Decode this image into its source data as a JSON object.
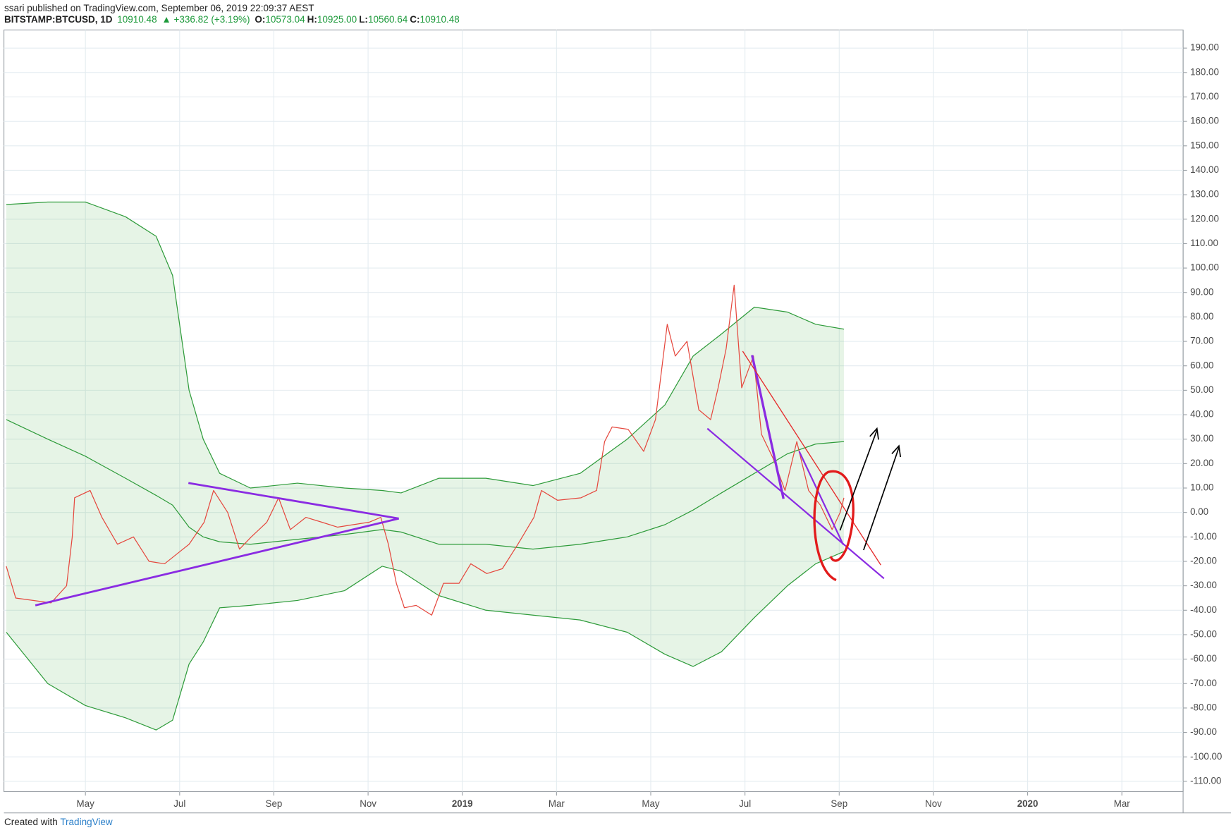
{
  "header": {
    "published": "ssari published on TradingView.com, September 06, 2019 22:09:37 AEST",
    "symbol": "BITSTAMP:BTCUSD, 1D",
    "last": "10910.48",
    "change": "▲ +336.82 (+3.19%)",
    "ohlc": [
      {
        "label": "O:",
        "value": "10573.04"
      },
      {
        "label": "H:",
        "value": "10925.00"
      },
      {
        "label": "L:",
        "value": "10560.64"
      },
      {
        "label": "C:",
        "value": "10910.48"
      }
    ]
  },
  "footer": {
    "text": "Created with",
    "brand": "TradingView"
  },
  "chart_data": {
    "type": "line",
    "xlim": [
      2.27,
      27.3
    ],
    "xticks": [
      {
        "value": 4,
        "label": "May"
      },
      {
        "value": 6,
        "label": "Jul"
      },
      {
        "value": 8,
        "label": "Sep"
      },
      {
        "value": 10,
        "label": "Nov"
      },
      {
        "value": 12,
        "label": "2019"
      },
      {
        "value": 14,
        "label": "Mar"
      },
      {
        "value": 16,
        "label": "May"
      },
      {
        "value": 18,
        "label": "Jul"
      },
      {
        "value": 20,
        "label": "Sep"
      },
      {
        "value": 22,
        "label": "Nov"
      },
      {
        "value": 24,
        "label": "2020"
      },
      {
        "value": 26,
        "label": "Mar"
      }
    ],
    "ylim": [
      -114.2,
      197.4
    ],
    "yticks": [
      {
        "value": 190,
        "label": "190.00"
      },
      {
        "value": 180,
        "label": "180.00"
      },
      {
        "value": 170,
        "label": "170.00"
      },
      {
        "value": 160,
        "label": "160.00"
      },
      {
        "value": 150,
        "label": "150.00"
      },
      {
        "value": 140,
        "label": "140.00"
      },
      {
        "value": 130,
        "label": "130.00"
      },
      {
        "value": 120,
        "label": "120.00"
      },
      {
        "value": 110,
        "label": "110.00"
      },
      {
        "value": 100,
        "label": "100.00"
      },
      {
        "value": 90,
        "label": "90.00"
      },
      {
        "value": 80,
        "label": "80.00"
      },
      {
        "value": 70,
        "label": "70.00"
      },
      {
        "value": 60,
        "label": "60.00"
      },
      {
        "value": 50,
        "label": "50.00"
      },
      {
        "value": 40,
        "label": "40.00"
      },
      {
        "value": 30,
        "label": "30.00"
      },
      {
        "value": 20,
        "label": "20.00"
      },
      {
        "value": 10,
        "label": "10.00"
      },
      {
        "value": 0,
        "label": "0.00"
      },
      {
        "value": -10,
        "label": "-10.00"
      },
      {
        "value": -20,
        "label": "-20.00"
      },
      {
        "value": -30,
        "label": "-30.00"
      },
      {
        "value": -40,
        "label": "-40.00"
      },
      {
        "value": -50,
        "label": "-50.00"
      },
      {
        "value": -60,
        "label": "-60.00"
      },
      {
        "value": -70,
        "label": "-70.00"
      },
      {
        "value": -80,
        "label": "-80.00"
      },
      {
        "value": -90,
        "label": "-90.00"
      },
      {
        "value": -100,
        "label": "-100.00"
      },
      {
        "value": -110,
        "label": "-110.00"
      }
    ],
    "grid": true,
    "band_fill": "rgba(76,175,80,0.14)",
    "series": [
      {
        "color": "#2e9b3a",
        "x": [
          2.32,
          3.2,
          4.0,
          4.85,
          5.5,
          5.85,
          6.2,
          6.5,
          6.85,
          7.5,
          8.5,
          9.5,
          10.3,
          10.7,
          11.5,
          12.5,
          13.5,
          14.5,
          15.5,
          16.3,
          16.9,
          17.5,
          18.2,
          18.9,
          19.5,
          20.1
        ],
        "values": [
          126,
          127,
          127,
          121,
          113,
          97,
          50,
          30,
          16,
          10,
          12,
          10,
          9,
          8,
          14,
          14,
          11,
          16,
          30,
          44,
          64,
          73,
          84,
          82,
          77,
          75
        ]
      },
      {
        "color": "#2e9b3a",
        "x": [
          2.32,
          3.2,
          4.0,
          4.85,
          5.5,
          5.85,
          6.2,
          6.5,
          6.85,
          7.5,
          8.5,
          9.5,
          10.3,
          10.7,
          11.5,
          12.5,
          13.5,
          14.5,
          15.5,
          16.3,
          16.9,
          17.5,
          18.2,
          18.9,
          19.5,
          20.1
        ],
        "values": [
          38,
          30,
          23,
          14,
          7,
          3,
          -6,
          -10,
          -12,
          -13,
          -11,
          -9,
          -7,
          -8,
          -13,
          -13,
          -15,
          -13,
          -10,
          -5,
          1,
          8,
          16,
          24,
          28,
          29
        ]
      },
      {
        "color": "#2e9b3a",
        "x": [
          2.32,
          3.2,
          4.0,
          4.85,
          5.5,
          5.85,
          6.2,
          6.5,
          6.85,
          7.5,
          8.5,
          9.5,
          10.3,
          10.7,
          11.5,
          12.5,
          13.5,
          14.5,
          15.5,
          16.3,
          16.9,
          17.5,
          18.2,
          18.9,
          19.5,
          20.1
        ],
        "values": [
          -49,
          -70,
          -79,
          -84,
          -89,
          -85,
          -62,
          -53,
          -39,
          -38,
          -36,
          -32,
          -22,
          -24,
          -34,
          -40,
          -42,
          -44,
          -49,
          -58,
          -63,
          -57,
          -43,
          -30,
          -21,
          -16
        ]
      },
      {
        "color": "#e5473d",
        "x": [
          2.32,
          2.52,
          3.27,
          3.6,
          3.72,
          3.77,
          4.1,
          4.35,
          4.68,
          5.02,
          5.35,
          5.68,
          6.2,
          6.52,
          6.72,
          7.02,
          7.27,
          7.52,
          7.85,
          8.1,
          8.35,
          8.68,
          9.02,
          9.35,
          9.68,
          10.02,
          10.27,
          10.43,
          10.6,
          10.77,
          11.02,
          11.35,
          11.6,
          11.93,
          12.18,
          12.52,
          12.85,
          13.18,
          13.52,
          13.68,
          14.02,
          14.52,
          14.85,
          15.02,
          15.18,
          15.52,
          15.85,
          16.1,
          16.35,
          16.52,
          16.77,
          17.02,
          17.27,
          17.43,
          17.6,
          17.77,
          17.93,
          18.18,
          18.35,
          18.6,
          18.85,
          19.1,
          19.35,
          19.6,
          19.85,
          20.02,
          20.1
        ],
        "values": [
          -22,
          -35,
          -37,
          -30,
          -10,
          6,
          9,
          -2,
          -13,
          -10,
          -20,
          -21,
          -13,
          -4,
          9,
          0,
          -15,
          -10,
          -4,
          6,
          -7,
          -2,
          -4,
          -6,
          -5,
          -4,
          -2,
          -13,
          -29,
          -39,
          -38,
          -42,
          -29,
          -29,
          -21,
          -25,
          -23,
          -13,
          -2,
          9,
          5,
          6,
          9,
          29,
          35,
          34,
          25,
          38,
          77,
          64,
          70,
          42,
          38,
          51,
          67,
          93,
          51,
          64,
          32,
          22,
          9,
          29,
          9,
          3,
          -7,
          0,
          6
        ]
      }
    ]
  }
}
